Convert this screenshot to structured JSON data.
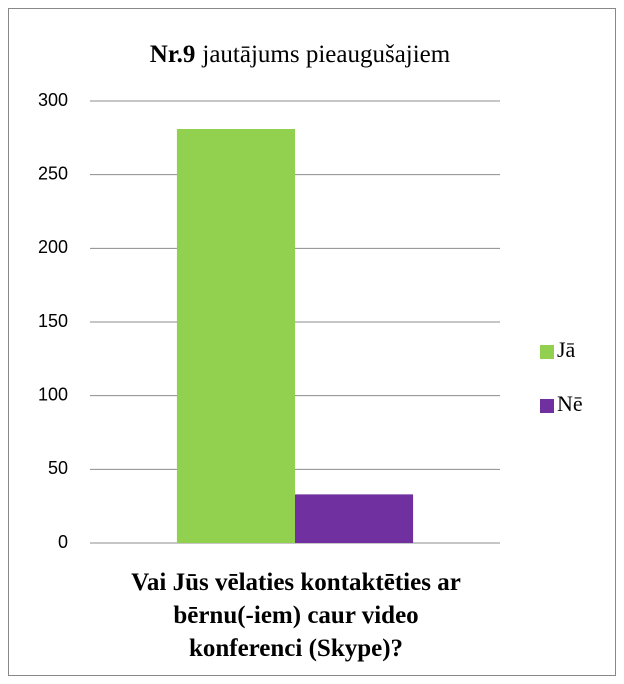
{
  "chart_data": {
    "type": "bar",
    "title": {
      "bold": "Nr.9",
      "text": "jautājums pieaugušajiem"
    },
    "categories": [
      "Vai Jūs vēlaties kontaktēties ar bērnu(-iem) caur video konferenci (Skype)?"
    ],
    "series": [
      {
        "name": "Jā",
        "color": "#92d050",
        "values": [
          281
        ]
      },
      {
        "name": "Nē",
        "color": "#7030a0",
        "values": [
          33
        ]
      }
    ],
    "ylim": [
      0,
      300
    ],
    "yticks": [
      0,
      50,
      100,
      150,
      200,
      250,
      300
    ],
    "grid": true,
    "legend": "right"
  }
}
